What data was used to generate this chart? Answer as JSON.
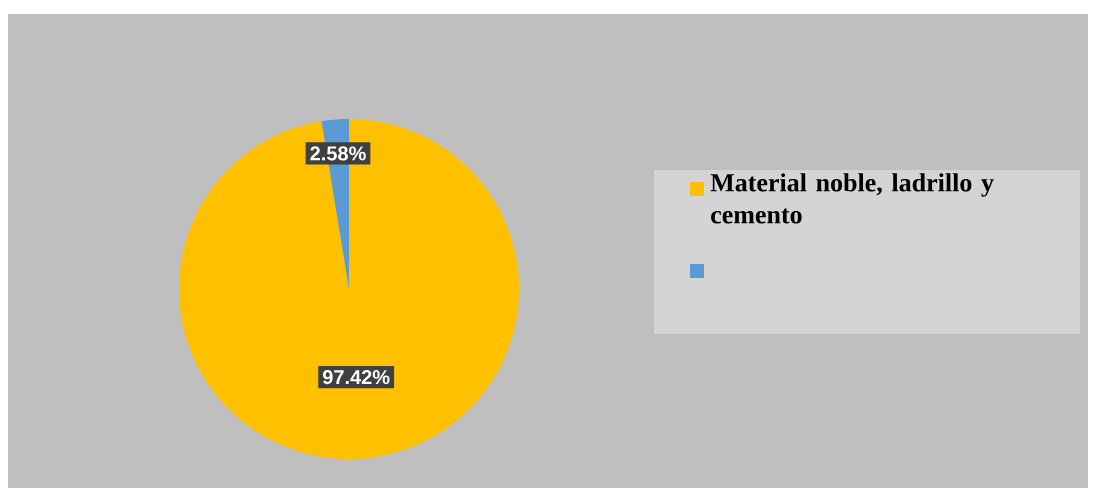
{
  "chart_data": {
    "type": "pie",
    "categories": [
      "Material noble, ladrillo y cemento",
      null
    ],
    "values": [
      97.42,
      2.58
    ],
    "colors": [
      "#ffc000",
      "#5b9bd5"
    ],
    "value_labels": [
      "97.42%",
      "2.58%"
    ],
    "legend": "right"
  }
}
